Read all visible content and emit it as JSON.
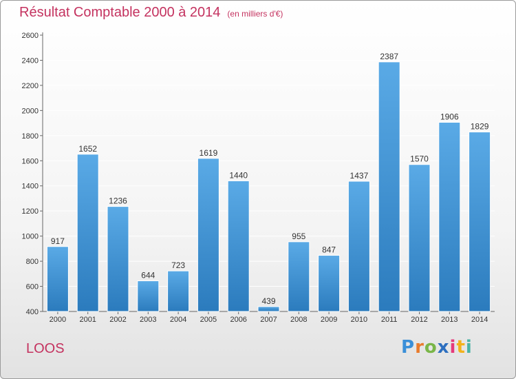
{
  "title": "Résultat Comptable 2000 à 2014",
  "unit": "(en milliers d'€)",
  "commune": "LOOS",
  "logo": {
    "letters": [
      "P",
      "r",
      "o",
      "x",
      "i",
      "t",
      "i"
    ],
    "colors": [
      "#3a8fd8",
      "#e97b2c",
      "#7ab648",
      "#2d6fbf",
      "#e63a7a",
      "#f2b21b",
      "#48b3a6"
    ]
  },
  "colors": {
    "title": "#c4325f",
    "bar_top": "#5aaae6",
    "bar_bottom": "#2b7bbd",
    "axis": "#666666",
    "grid": "#ffffff"
  },
  "chart_data": {
    "type": "bar",
    "title": "Résultat Comptable 2000 à 2014",
    "xlabel": "",
    "ylabel": "",
    "categories": [
      "2000",
      "2001",
      "2002",
      "2003",
      "2004",
      "2005",
      "2006",
      "2007",
      "2008",
      "2009",
      "2010",
      "2011",
      "2012",
      "2013",
      "2014"
    ],
    "values": [
      917,
      1652,
      1236,
      644,
      723,
      1619,
      1440,
      439,
      955,
      847,
      1437,
      2387,
      1570,
      1906,
      1829
    ],
    "ylim": [
      400,
      2600
    ],
    "yticks": [
      400,
      600,
      800,
      1000,
      1200,
      1400,
      1600,
      1800,
      2000,
      2200,
      2400,
      2600
    ],
    "grid": true
  }
}
